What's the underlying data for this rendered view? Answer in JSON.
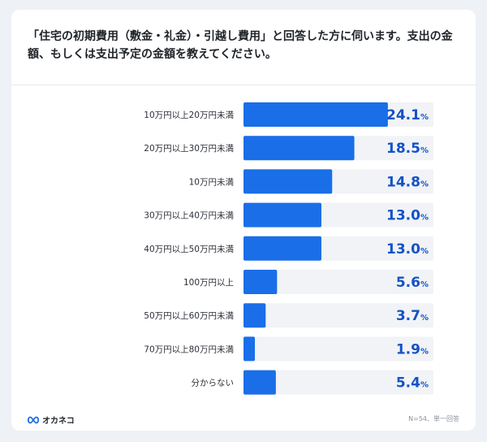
{
  "title": "「住宅の初期費用（敷金・礼金）・引越し費用」と回答した方に伺います。支出の金額、もしくは支出予定の金額を教えてください。",
  "footer": {
    "brand": "オカネコ",
    "note": "N=54、単一回答"
  },
  "colors": {
    "bar": "#1a6ee8",
    "track": "#f1f3f6",
    "value": "#1452c6",
    "label": "#2b2f36"
  },
  "chart_data": {
    "type": "bar",
    "orientation": "horizontal",
    "categories": [
      "10万円以上20万円未満",
      "20万円以上30万円未満",
      "10万円未満",
      "30万円以上40万円未満",
      "40万円以上50万円未満",
      "100万円以上",
      "50万円以上60万円未満",
      "70万円以上80万円未満",
      "分からない"
    ],
    "values": [
      24.1,
      18.5,
      14.8,
      13.0,
      13.0,
      5.6,
      3.7,
      1.9,
      5.4
    ],
    "value_labels": [
      "24.1",
      "18.5",
      "14.8",
      "13.0",
      "13.0",
      "5.6",
      "3.7",
      "1.9",
      "5.4"
    ],
    "unit": "%",
    "xlim": [
      0,
      31.7
    ]
  }
}
